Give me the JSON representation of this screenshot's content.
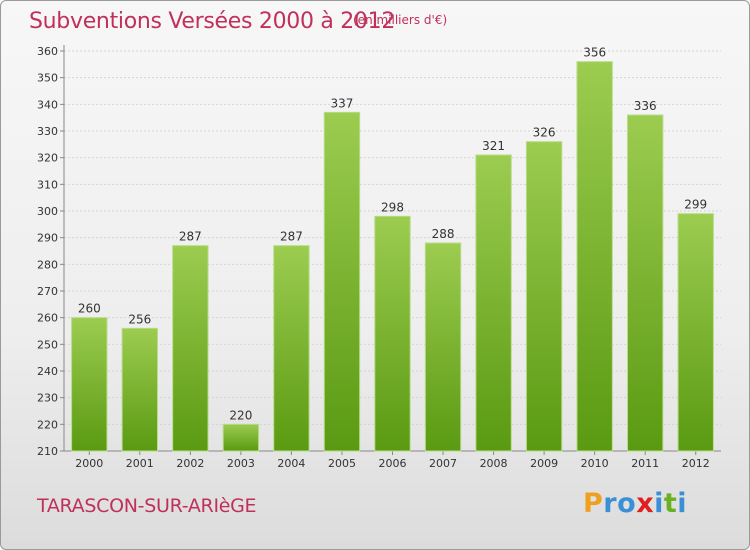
{
  "header": {
    "title": "Subventions Versées 2000 à 2012",
    "unit_note": "(en milliers d'€)"
  },
  "footer": {
    "town": "TARASCON-SUR-ARIèGE",
    "logo_text": "Proxiti",
    "logo_letters": [
      {
        "ch": "P",
        "color": "#f0a020"
      },
      {
        "ch": "r",
        "color": "#3b8fd6"
      },
      {
        "ch": "o",
        "color": "#3b8fd6"
      },
      {
        "ch": "x",
        "color": "#e02020"
      },
      {
        "ch": "i",
        "color": "#3b8fd6"
      },
      {
        "ch": "t",
        "color": "#6ab023"
      },
      {
        "ch": "i",
        "color": "#3b8fd6"
      }
    ]
  },
  "chart_data": {
    "type": "bar",
    "title": "Subventions Versées 2000 à 2012",
    "subtitle": "(en milliers d'€)",
    "categories": [
      "2000",
      "2001",
      "2002",
      "2003",
      "2004",
      "2005",
      "2006",
      "2007",
      "2008",
      "2009",
      "2010",
      "2011",
      "2012"
    ],
    "values": [
      260,
      256,
      287,
      220,
      287,
      337,
      298,
      288,
      321,
      326,
      356,
      336,
      299
    ],
    "ylim": [
      210,
      360
    ],
    "yticks": [
      210,
      220,
      230,
      240,
      250,
      260,
      270,
      280,
      290,
      300,
      310,
      320,
      330,
      340,
      350,
      360
    ],
    "grid": true,
    "bar_color_top": "#9ccc50",
    "bar_color_bottom": "#5a9a12",
    "title_color": "#c0305a"
  }
}
